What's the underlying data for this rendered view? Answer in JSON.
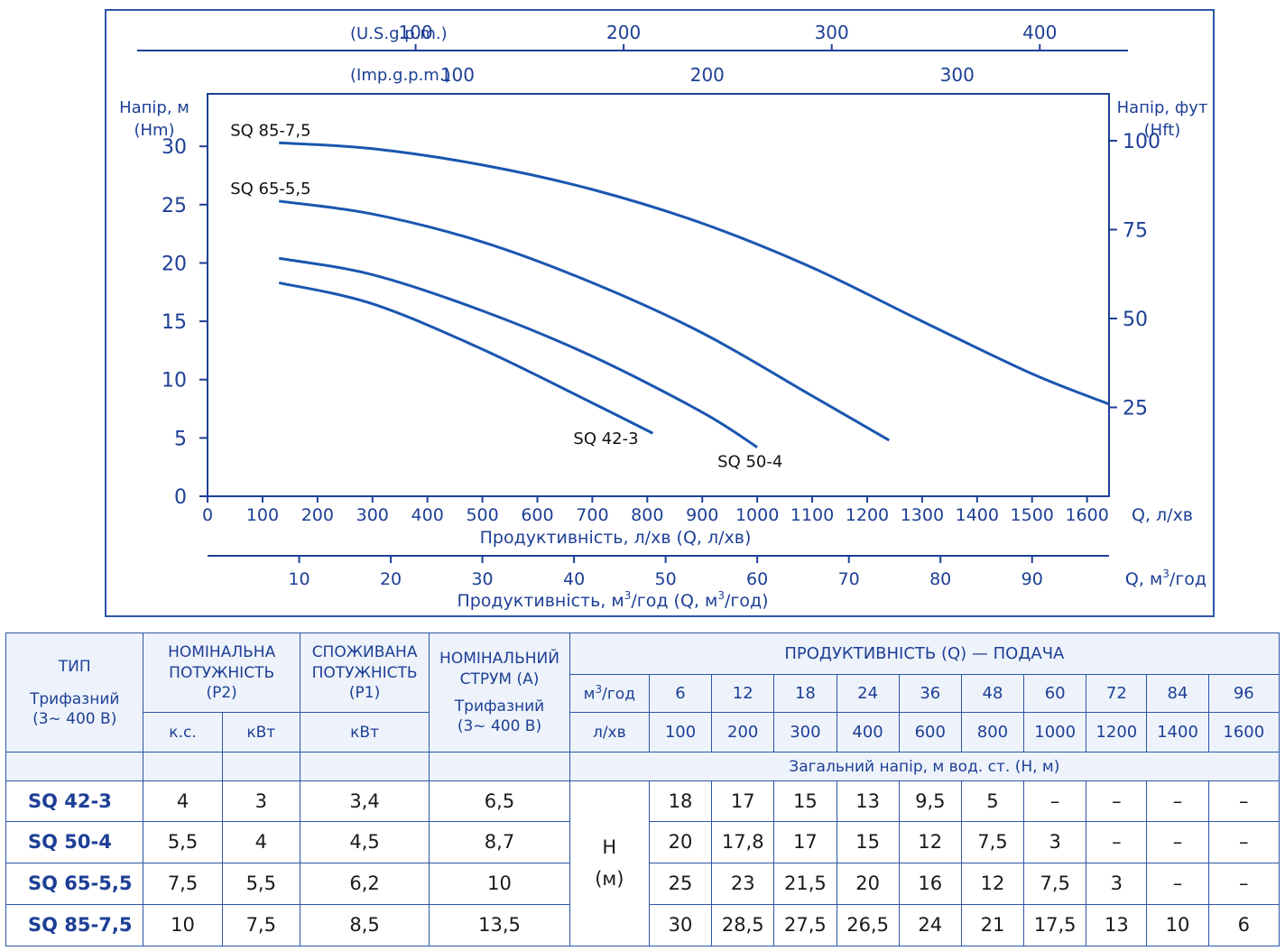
{
  "chart_data": {
    "type": "line",
    "x_flow_lmin": {
      "label": "Продуктивність, л/хв (Q, л/хв)",
      "unit": "Q, л/хв",
      "ticks": [
        "0",
        "100",
        "200",
        "300",
        "400",
        "500",
        "600",
        "700",
        "800",
        "900",
        "1000",
        "1100",
        "1200",
        "1300",
        "1400",
        "1500",
        "1600"
      ],
      "xlim": [
        0,
        1640
      ]
    },
    "x_flow_m3h": {
      "label_prefix": "Продуктивність, м",
      "label_mid": "/год (Q, м",
      "label_suffix": "/год)",
      "sup": "3",
      "unit_prefix": "Q, м",
      "unit_suffix": "/год",
      "ticks": [
        "10",
        "20",
        "30",
        "40",
        "50",
        "60",
        "70",
        "80",
        "90"
      ]
    },
    "x_usgpm": {
      "label": "(U.S.g.p.m.)",
      "ticks": [
        "100",
        "200",
        "300",
        "400"
      ]
    },
    "x_impgpm": {
      "label": "(Imp.g.p.m.)",
      "ticks": [
        "100",
        "200",
        "300"
      ]
    },
    "y_left": {
      "label_line1": "Напір, м",
      "label_line2": "(Hm)",
      "ticks": [
        "0",
        "5",
        "10",
        "15",
        "20",
        "25",
        "30"
      ],
      "ylim": [
        0,
        34.5
      ]
    },
    "y_right": {
      "label_line1": "Напір, фут",
      "label_line2": "(Hft)",
      "ticks": [
        "25",
        "50",
        "75",
        "100"
      ]
    },
    "series": [
      {
        "name": "SQ 85-7,5",
        "x": [
          130,
          300,
          500,
          700,
          900,
          1100,
          1300,
          1500,
          1640
        ],
        "y": [
          30.3,
          29.8,
          28.4,
          26.3,
          23.4,
          19.6,
          15.0,
          10.5,
          7.9
        ]
      },
      {
        "name": "SQ 65-5,5",
        "x": [
          130,
          300,
          500,
          700,
          900,
          1100,
          1240
        ],
        "y": [
          25.3,
          24.2,
          21.8,
          18.3,
          14.0,
          8.6,
          4.8
        ]
      },
      {
        "name": "SQ 50-4",
        "x": [
          130,
          300,
          500,
          700,
          900,
          1000
        ],
        "y": [
          20.4,
          19.0,
          15.9,
          12.0,
          7.2,
          4.2
        ]
      },
      {
        "name": "SQ 42-3",
        "x": [
          130,
          300,
          500,
          700,
          810
        ],
        "y": [
          18.3,
          16.5,
          12.6,
          8.0,
          5.4
        ]
      }
    ],
    "colors": {
      "curve": "#1a56b0",
      "text": "#1d3f95",
      "frame": "#2b56a7"
    }
  },
  "table": {
    "hdr_type": "ТИП",
    "hdr_type_sub1": "Трифазний",
    "hdr_type_sub2": "(3~ 400 В)",
    "hdr_p2": "НОМІНАЛЬНА ПОТУЖНІСТЬ (P2)",
    "hdr_p1": "СПОЖИВАНА ПОТУЖНІСТЬ (P1)",
    "hdr_current": "НОМІНАЛЬНИЙ СТРУМ (А)",
    "hdr_current_sub1": "Трифазний",
    "hdr_current_sub2": "(3~ 400 В)",
    "hdr_perf": "ПРОДУКТИВНІСТЬ (Q) — ПОДАЧА",
    "unit_m3h_pre": "м",
    "unit_m3h_sup": "3",
    "unit_m3h_post": "/год",
    "unit_lmin": "л/хв",
    "unit_hp": "к.с.",
    "unit_kw": "кВт",
    "unit_kw2": "кВт",
    "head_caption": "Загальний напір, м вод. ст. (H, м)",
    "h_label1": "H",
    "h_label2": "(м)",
    "flows_m3h": [
      "6",
      "12",
      "18",
      "24",
      "36",
      "48",
      "60",
      "72",
      "84",
      "96"
    ],
    "flows_lmin": [
      "100",
      "200",
      "300",
      "400",
      "600",
      "800",
      "1000",
      "1200",
      "1400",
      "1600"
    ],
    "rows": [
      {
        "type": "SQ 42-3",
        "hp": "4",
        "kw": "3",
        "p1": "3,4",
        "amp": "6,5",
        "heads": [
          "18",
          "17",
          "15",
          "13",
          "9,5",
          "5",
          "–",
          "–",
          "–",
          "–"
        ]
      },
      {
        "type": "SQ 50-4",
        "hp": "5,5",
        "kw": "4",
        "p1": "4,5",
        "amp": "8,7",
        "heads": [
          "20",
          "17,8",
          "17",
          "15",
          "12",
          "7,5",
          "3",
          "–",
          "–",
          "–"
        ]
      },
      {
        "type": "SQ 65-5,5",
        "hp": "7,5",
        "kw": "5,5",
        "p1": "6,2",
        "amp": "10",
        "heads": [
          "25",
          "23",
          "21,5",
          "20",
          "16",
          "12",
          "7,5",
          "3",
          "–",
          "–"
        ]
      },
      {
        "type": "SQ 85-7,5",
        "hp": "10",
        "kw": "7,5",
        "p1": "8,5",
        "amp": "13,5",
        "heads": [
          "30",
          "28,5",
          "27,5",
          "26,5",
          "24",
          "21",
          "17,5",
          "13",
          "10",
          "6"
        ]
      }
    ]
  }
}
